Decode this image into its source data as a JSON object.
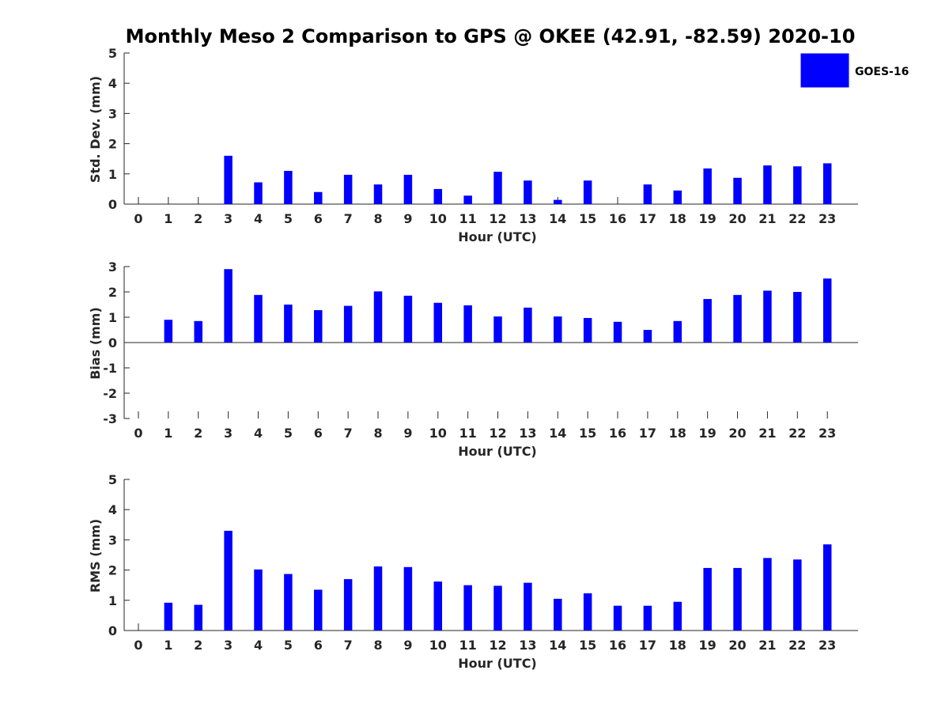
{
  "page_title": "Monthly Meso 2 Comparison to GPS @ OKEE (42.91, -82.59) 2020-10",
  "legend": {
    "label": "GOES-16",
    "color": "#0000ff"
  },
  "chart_data": [
    {
      "type": "bar",
      "xlabel": "Hour (UTC)",
      "ylabel": "Std. Dev. (mm)",
      "ylim": [
        0,
        5
      ],
      "yticks": [
        0,
        1,
        2,
        3,
        4,
        5
      ],
      "categories": [
        "0",
        "1",
        "2",
        "3",
        "4",
        "5",
        "6",
        "7",
        "8",
        "9",
        "10",
        "11",
        "12",
        "13",
        "14",
        "15",
        "16",
        "17",
        "18",
        "19",
        "20",
        "21",
        "22",
        "23"
      ],
      "series": [
        {
          "name": "GOES-16",
          "color": "#0000ff",
          "values": [
            null,
            null,
            null,
            1.6,
            0.72,
            1.1,
            0.4,
            0.97,
            0.65,
            0.97,
            0.5,
            0.28,
            1.07,
            0.78,
            0.14,
            0.78,
            null,
            0.65,
            0.45,
            1.18,
            0.87,
            1.28,
            1.25,
            1.35
          ]
        }
      ]
    },
    {
      "type": "bar",
      "xlabel": "Hour (UTC)",
      "ylabel": "Bias (mm)",
      "ylim": [
        -3,
        3
      ],
      "yticks": [
        -3,
        -2,
        -1,
        0,
        1,
        2,
        3
      ],
      "categories": [
        "0",
        "1",
        "2",
        "3",
        "4",
        "5",
        "6",
        "7",
        "8",
        "9",
        "10",
        "11",
        "12",
        "13",
        "14",
        "15",
        "16",
        "17",
        "18",
        "19",
        "20",
        "21",
        "22",
        "23"
      ],
      "series": [
        {
          "name": "GOES-16",
          "color": "#0000ff",
          "values": [
            null,
            0.9,
            0.85,
            2.9,
            1.88,
            1.5,
            1.28,
            1.45,
            2.02,
            1.85,
            1.57,
            1.47,
            1.03,
            1.38,
            1.03,
            0.97,
            0.82,
            0.5,
            0.85,
            1.72,
            1.88,
            2.05,
            2.0,
            2.53
          ]
        }
      ]
    },
    {
      "type": "bar",
      "xlabel": "Hour (UTC)",
      "ylabel": "RMS (mm)",
      "ylim": [
        0,
        5
      ],
      "yticks": [
        0,
        1,
        2,
        3,
        4,
        5
      ],
      "categories": [
        "0",
        "1",
        "2",
        "3",
        "4",
        "5",
        "6",
        "7",
        "8",
        "9",
        "10",
        "11",
        "12",
        "13",
        "14",
        "15",
        "16",
        "17",
        "18",
        "19",
        "20",
        "21",
        "22",
        "23"
      ],
      "series": [
        {
          "name": "GOES-16",
          "color": "#0000ff",
          "values": [
            null,
            0.92,
            0.85,
            3.3,
            2.02,
            1.87,
            1.35,
            1.7,
            2.12,
            2.1,
            1.62,
            1.5,
            1.48,
            1.58,
            1.05,
            1.23,
            0.82,
            0.82,
            0.95,
            2.07,
            2.07,
            2.4,
            2.35,
            2.85
          ]
        }
      ]
    }
  ]
}
